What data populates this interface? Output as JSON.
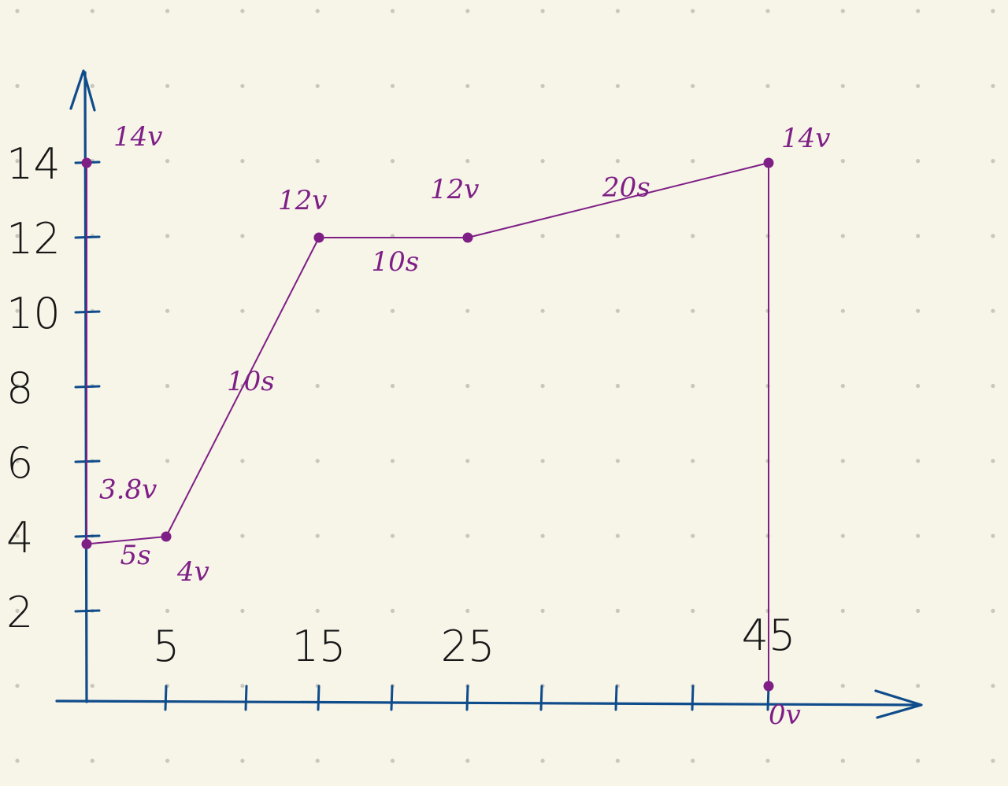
{
  "chart_data": {
    "type": "line",
    "title": "",
    "xlabel": "",
    "ylabel": "",
    "x_tick_labels": [
      "5",
      "15",
      "25",
      "45"
    ],
    "x_tick_values": [
      5,
      15,
      25,
      45
    ],
    "y_tick_labels": [
      "2",
      "4",
      "6",
      "8",
      "10",
      "12",
      "14"
    ],
    "y_tick_values": [
      2,
      4,
      6,
      8,
      10,
      12,
      14
    ],
    "series": [
      {
        "points": [
          {
            "x": 0,
            "y": 14
          },
          {
            "x": 0,
            "y": 3.8
          },
          {
            "x": 5,
            "y": 4
          },
          {
            "x": 15,
            "y": 12
          },
          {
            "x": 25,
            "y": 12
          },
          {
            "x": 45,
            "y": 14
          },
          {
            "x": 45,
            "y": 0
          }
        ]
      }
    ],
    "point_labels": [
      {
        "text": "14v",
        "x": 0,
        "y": 14
      },
      {
        "text": "3.8v",
        "x": 0,
        "y": 3.8
      },
      {
        "text": "4v",
        "x": 5,
        "y": 4
      },
      {
        "text": "12v",
        "x": 15,
        "y": 12
      },
      {
        "text": "12v",
        "x": 25,
        "y": 12
      },
      {
        "text": "14v",
        "x": 45,
        "y": 14
      },
      {
        "text": "0v",
        "x": 45,
        "y": 0
      }
    ],
    "segment_labels": [
      {
        "text": "5s",
        "x": 2.5,
        "y": 3.9
      },
      {
        "text": "10s",
        "x": 10,
        "y": 8
      },
      {
        "text": "10s",
        "x": 20,
        "y": 12
      },
      {
        "text": "20s",
        "x": 35,
        "y": 13
      }
    ],
    "grid": "dotted",
    "colors": {
      "background": "#f7f4e8",
      "axis": "#0f4c8b",
      "line": "#7e1f86",
      "dots": "#c9c6bc",
      "text": "#171717"
    }
  }
}
